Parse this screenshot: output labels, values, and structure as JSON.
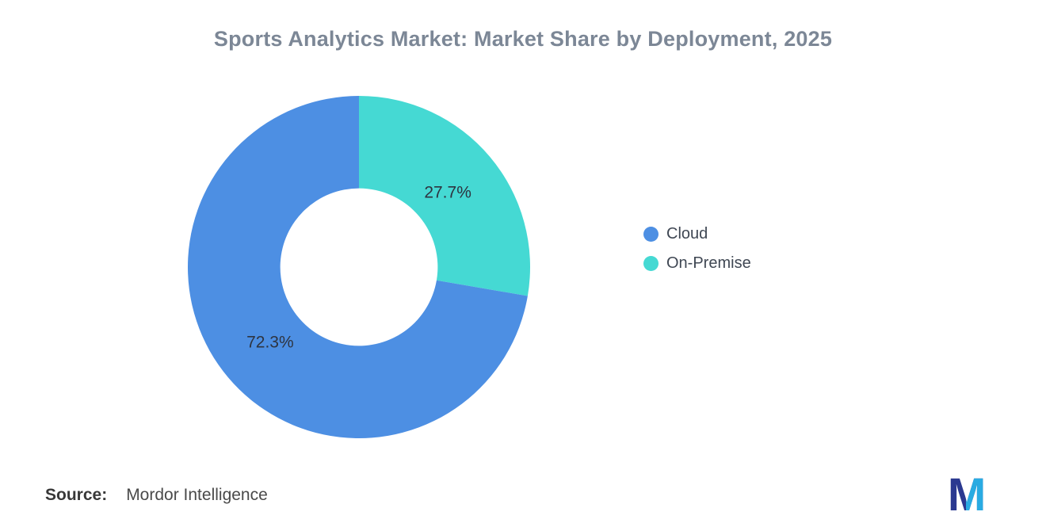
{
  "header": {
    "title": "Sports Analytics Market: Market Share by Deployment, 2025"
  },
  "chart_data": {
    "type": "pie",
    "subtype": "donut",
    "title": "Sports Analytics Market: Market Share by Deployment, 2025",
    "categories": [
      "Cloud",
      "On-Premise"
    ],
    "values": [
      72.3,
      27.7
    ],
    "series": [
      {
        "name": "Cloud",
        "value": 72.3,
        "label": "72.3%",
        "color": "#4D8FE3"
      },
      {
        "name": "On-Premise",
        "value": 27.7,
        "label": "27.7%",
        "color": "#45D9D3"
      }
    ],
    "draw_order": [
      "On-Premise",
      "Cloud"
    ],
    "start_angle_deg": 0,
    "direction": "clockwise",
    "inner_radius_ratio": 0.46,
    "label_color": "#2e3440",
    "legend_position": "right",
    "legend_entries": [
      "Cloud",
      "On-Premise"
    ]
  },
  "legend": {
    "items": [
      {
        "label": "Cloud",
        "color": "#4D8FE3"
      },
      {
        "label": "On-Premise",
        "color": "#45D9D3"
      }
    ]
  },
  "footer": {
    "source_label": "Source:",
    "source_value": "Mordor Intelligence"
  },
  "logo": {
    "letter": "M",
    "dark_color": "#2B3990",
    "light_color": "#29ABE2"
  }
}
